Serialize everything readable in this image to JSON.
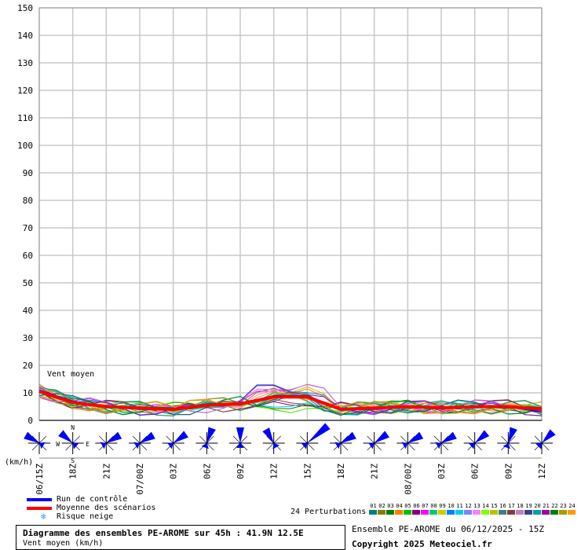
{
  "chart_data": {
    "type": "line",
    "ylabel": "(km/h)",
    "ylim": [
      0,
      150
    ],
    "yticks": [
      0,
      10,
      20,
      30,
      40,
      50,
      60,
      70,
      80,
      90,
      100,
      110,
      120,
      130,
      140,
      150
    ],
    "x_tick_labels": [
      "06/15Z",
      "18Z",
      "21Z",
      "07/00Z",
      "03Z",
      "06Z",
      "09Z",
      "12Z",
      "15Z",
      "18Z",
      "21Z",
      "08/00Z",
      "03Z",
      "06Z",
      "09Z",
      "12Z"
    ],
    "x_hours": [
      0,
      45
    ],
    "grid": true,
    "annotation": "Vent moyen",
    "control_run": {
      "name": "Run de contrôle",
      "color": "#0000ff",
      "hours": [
        0,
        3,
        6,
        9,
        12,
        15,
        18,
        21,
        24,
        27,
        30,
        33,
        36,
        39,
        42,
        45
      ],
      "values": [
        11,
        7,
        5,
        4,
        4,
        6,
        6,
        9,
        9,
        4,
        4,
        5,
        5,
        5,
        5,
        3
      ]
    },
    "mean_of_scenarios": {
      "name": "Moyenne des scénarios",
      "color": "#ff0000",
      "hours": [
        0,
        3,
        6,
        9,
        12,
        15,
        18,
        21,
        24,
        27,
        30,
        33,
        36,
        39,
        42,
        45
      ],
      "values": [
        10.5,
        6.5,
        5,
        4.5,
        4,
        5.5,
        6,
        8.5,
        8.5,
        4,
        4.5,
        5,
        4.5,
        5,
        5,
        4
      ]
    },
    "perturbations_count_label": "24 Perturbations",
    "perturbation_ids": [
      "01",
      "02",
      "03",
      "04",
      "05",
      "06",
      "07",
      "08",
      "09",
      "10",
      "11",
      "12",
      "13",
      "14",
      "15",
      "16",
      "17",
      "18",
      "19",
      "20",
      "21",
      "22",
      "23",
      "24"
    ],
    "perturbation_colors": [
      "#008080",
      "#808000",
      "#008000",
      "#ff8000",
      "#00c000",
      "#800080",
      "#ff00ff",
      "#00cc66",
      "#cccc00",
      "#0080ff",
      "#00ccff",
      "#8080ff",
      "#ff80ff",
      "#80ff00",
      "#c0c000",
      "#408080",
      "#804040",
      "#c080c0",
      "#404080",
      "#00a0a0",
      "#a000a0",
      "#008000",
      "#a0a000",
      "#ff9900"
    ],
    "wind_roses": {
      "row_label": "(km/h)",
      "compass_labels": [
        "N",
        "E",
        "S",
        "W"
      ],
      "color": "#0000ff"
    },
    "legend": {
      "items": [
        {
          "label": "Run de contrôle",
          "color": "#0000ff"
        },
        {
          "label": "Moyenne des scénarios",
          "color": "#ff0000"
        },
        {
          "label": "Risque neige",
          "color": "#3399ff",
          "icon": "snowflake-icon"
        }
      ]
    }
  },
  "footer": {
    "title": "Diagramme des ensembles PE-AROME sur 45h : 41.9N 12.5E",
    "subtitle": "Vent moyen (km/h)",
    "ensemble": "Ensemble PE-AROME du 06/12/2025 - 15Z",
    "copyright": "Copyright 2025 Meteociel.fr"
  }
}
